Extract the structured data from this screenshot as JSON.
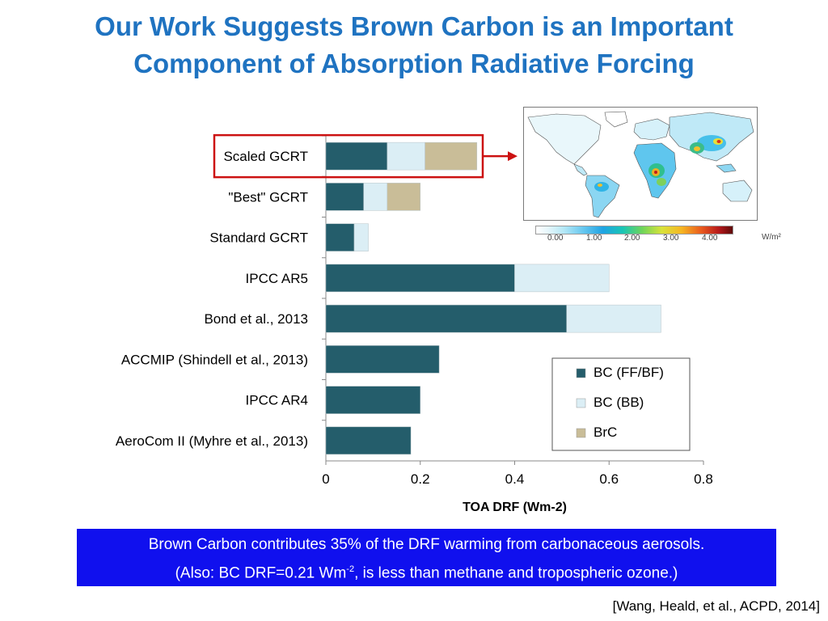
{
  "slide": {
    "title_line1": "Our Work Suggests Brown Carbon is an Important",
    "title_line2": "Component of Absorption Radiative Forcing",
    "footer_line1": "Brown Carbon contributes 35% of the DRF warming from carbonaceous aerosols.",
    "footer_line2_pre": "(Also: BC DRF=0.21 Wm",
    "footer_line2_sup": "-2",
    "footer_line2_post": ",  is less than methane and tropospheric ozone.)",
    "citation": "[Wang, Heald, et al., ACPD, 2014]"
  },
  "map_inset": {
    "colorbar_ticks": [
      "0.00",
      "1.00",
      "2.00",
      "3.00",
      "4.00"
    ],
    "unit": "W/m²"
  },
  "colors": {
    "bc_ff_bf": "#245d6b",
    "bc_bb": "#dbeef5",
    "brc": "#c9bd98",
    "highlight": "#cc1111",
    "title": "#1f73c1"
  },
  "chart_data": {
    "type": "bar",
    "orientation": "horizontal",
    "stacked": true,
    "categories": [
      "Scaled GCRT",
      "\"Best\" GCRT",
      "Standard GCRT",
      "IPCC AR5",
      "Bond et al., 2013",
      "ACCMIP (Shindell et al., 2013)",
      "IPCC AR4",
      "AeroCom II (Myhre et al., 2013)"
    ],
    "series": [
      {
        "name": "BC (FF/BF)",
        "values": [
          0.13,
          0.08,
          0.06,
          0.4,
          0.51,
          0.24,
          0.2,
          0.18
        ]
      },
      {
        "name": "BC (BB)",
        "values": [
          0.08,
          0.05,
          0.03,
          0.2,
          0.2,
          0.0,
          0.0,
          0.0
        ]
      },
      {
        "name": "BrC",
        "values": [
          0.11,
          0.07,
          0.0,
          0.0,
          0.0,
          0.0,
          0.0,
          0.0
        ]
      }
    ],
    "xlabel": "TOA DRF (Wm-2)",
    "xlim": [
      0,
      0.8
    ],
    "xticks": [
      "0",
      "0.2",
      "0.4",
      "0.6",
      "0.8"
    ],
    "highlighted_category": "Scaled GCRT",
    "legend_position": "bottom-right"
  }
}
